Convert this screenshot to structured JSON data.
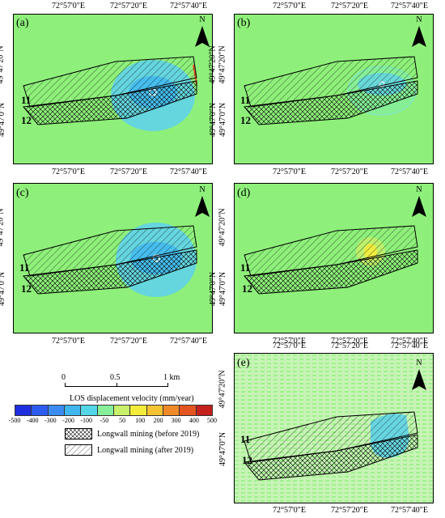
{
  "coords": {
    "lon_ticks": [
      "72°57'0\"E",
      "72°57'20\"E",
      "72°57'40\"E"
    ],
    "lat_ticks": [
      "49°47'20\"N",
      "49°47'0\"N"
    ]
  },
  "north_label": "N",
  "mine_labels": {
    "panel_11": "11",
    "panel_12": "12"
  },
  "panels": [
    {
      "id": "a",
      "label": "(a)",
      "subsidence": "large"
    },
    {
      "id": "b",
      "label": "(b)",
      "subsidence": "medium"
    },
    {
      "id": "c",
      "label": "(c)",
      "subsidence": "large"
    },
    {
      "id": "d",
      "label": "(d)",
      "subsidence": "small"
    },
    {
      "id": "e",
      "label": "(e)",
      "subsidence": "localized"
    }
  ],
  "scalebar": {
    "ticks": [
      "0",
      "0.5",
      "1 km"
    ]
  },
  "colorbar": {
    "title": "LOS displacement velocity (mm/year)",
    "ticks": [
      "-500",
      "-400",
      "-300",
      "-200",
      "-100",
      "-50",
      "50",
      "100",
      "200",
      "300",
      "400",
      "500"
    ],
    "colors": [
      "#1f2fe0",
      "#2c5bf0",
      "#3b8cf2",
      "#3fb6ef",
      "#52d6e8",
      "#86ef9a",
      "#c9f06a",
      "#f4ec3a",
      "#f5c232",
      "#f08a28",
      "#e45420",
      "#c4201c"
    ]
  },
  "legend": {
    "before": "Longwall mining (before 2019)",
    "after": "Longwall mining (after 2019)"
  }
}
